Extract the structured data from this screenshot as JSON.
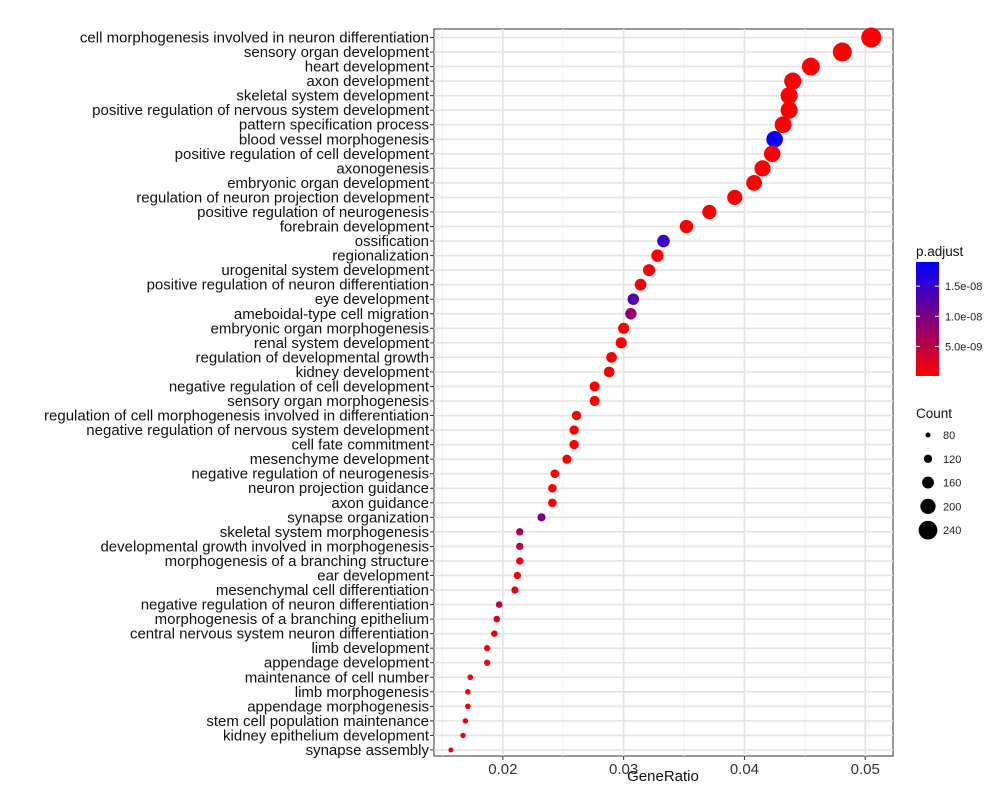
{
  "chart_data": {
    "type": "scatter",
    "title": "",
    "xlabel": "GeneRatio",
    "ylabel": "",
    "xlim": [
      0.0143,
      0.0523
    ],
    "x_ticks": [
      {
        "value": 0.02,
        "label": "0.02"
      },
      {
        "value": 0.03,
        "label": "0.03"
      },
      {
        "value": 0.04,
        "label": "0.04"
      },
      {
        "value": 0.05,
        "label": "0.05"
      }
    ],
    "grid": true,
    "legend_position": "right",
    "points": [
      {
        "term": "cell morphogenesis involved in neuron differentiation",
        "gene_ratio": 0.0505,
        "count": 255,
        "p_adjust": 1e-10
      },
      {
        "term": "sensory organ development",
        "gene_ratio": 0.0481,
        "count": 243,
        "p_adjust": 1e-10
      },
      {
        "term": "heart development",
        "gene_ratio": 0.0455,
        "count": 230,
        "p_adjust": 1e-10
      },
      {
        "term": "axon development",
        "gene_ratio": 0.044,
        "count": 222,
        "p_adjust": 1e-10
      },
      {
        "term": "skeletal system development",
        "gene_ratio": 0.0437,
        "count": 221,
        "p_adjust": 1e-10
      },
      {
        "term": "positive regulation of nervous system development",
        "gene_ratio": 0.0437,
        "count": 221,
        "p_adjust": 2e-10
      },
      {
        "term": "pattern specification process",
        "gene_ratio": 0.0432,
        "count": 218,
        "p_adjust": 5e-10
      },
      {
        "term": "blood vessel morphogenesis",
        "gene_ratio": 0.0425,
        "count": 215,
        "p_adjust": 1.85e-08
      },
      {
        "term": "positive regulation of cell development",
        "gene_ratio": 0.0423,
        "count": 214,
        "p_adjust": 4e-10
      },
      {
        "term": "axonogenesis",
        "gene_ratio": 0.0415,
        "count": 210,
        "p_adjust": 1e-10
      },
      {
        "term": "embryonic organ development",
        "gene_ratio": 0.0408,
        "count": 206,
        "p_adjust": 1e-10
      },
      {
        "term": "regulation of neuron projection development",
        "gene_ratio": 0.0392,
        "count": 198,
        "p_adjust": 2e-10
      },
      {
        "term": "positive regulation of neurogenesis",
        "gene_ratio": 0.0371,
        "count": 188,
        "p_adjust": 1e-10
      },
      {
        "term": "forebrain development",
        "gene_ratio": 0.0352,
        "count": 178,
        "p_adjust": 1e-10
      },
      {
        "term": "ossification",
        "gene_ratio": 0.0333,
        "count": 168,
        "p_adjust": 1.5e-08
      },
      {
        "term": "regionalization",
        "gene_ratio": 0.0328,
        "count": 166,
        "p_adjust": 5e-10
      },
      {
        "term": "urogenital system development",
        "gene_ratio": 0.0321,
        "count": 162,
        "p_adjust": 4e-10
      },
      {
        "term": "positive regulation of neuron differentiation",
        "gene_ratio": 0.0314,
        "count": 159,
        "p_adjust": 8e-10
      },
      {
        "term": "eye development",
        "gene_ratio": 0.0308,
        "count": 156,
        "p_adjust": 1.3e-08
      },
      {
        "term": "ameboidal-type cell migration",
        "gene_ratio": 0.0306,
        "count": 155,
        "p_adjust": 8e-09
      },
      {
        "term": "embryonic organ morphogenesis",
        "gene_ratio": 0.03,
        "count": 152,
        "p_adjust": 4e-10
      },
      {
        "term": "renal system development",
        "gene_ratio": 0.0298,
        "count": 151,
        "p_adjust": 4e-10
      },
      {
        "term": "regulation of developmental growth",
        "gene_ratio": 0.029,
        "count": 147,
        "p_adjust": 5e-10
      },
      {
        "term": "kidney development",
        "gene_ratio": 0.0288,
        "count": 146,
        "p_adjust": 4e-10
      },
      {
        "term": "negative regulation of cell development",
        "gene_ratio": 0.0276,
        "count": 140,
        "p_adjust": 3e-10
      },
      {
        "term": "sensory organ morphogenesis",
        "gene_ratio": 0.0276,
        "count": 140,
        "p_adjust": 3e-10
      },
      {
        "term": "regulation of cell morphogenesis involved in differentiation",
        "gene_ratio": 0.0261,
        "count": 132,
        "p_adjust": 2e-10
      },
      {
        "term": "negative regulation of nervous system development",
        "gene_ratio": 0.0259,
        "count": 131,
        "p_adjust": 3e-10
      },
      {
        "term": "cell fate commitment",
        "gene_ratio": 0.0259,
        "count": 131,
        "p_adjust": 2e-10
      },
      {
        "term": "mesenchyme development",
        "gene_ratio": 0.0253,
        "count": 128,
        "p_adjust": 2e-10
      },
      {
        "term": "negative regulation of neurogenesis",
        "gene_ratio": 0.0243,
        "count": 123,
        "p_adjust": 2e-10
      },
      {
        "term": "neuron projection guidance",
        "gene_ratio": 0.0241,
        "count": 122,
        "p_adjust": 2e-10
      },
      {
        "term": "axon guidance",
        "gene_ratio": 0.0241,
        "count": 122,
        "p_adjust": 2e-10
      },
      {
        "term": "synapse organization",
        "gene_ratio": 0.0232,
        "count": 117,
        "p_adjust": 1e-08
      },
      {
        "term": "skeletal system morphogenesis",
        "gene_ratio": 0.0214,
        "count": 108,
        "p_adjust": 7e-09
      },
      {
        "term": "developmental growth involved in morphogenesis",
        "gene_ratio": 0.0214,
        "count": 108,
        "p_adjust": 5e-09
      },
      {
        "term": "morphogenesis of a branching structure",
        "gene_ratio": 0.0214,
        "count": 108,
        "p_adjust": 1.5e-09
      },
      {
        "term": "ear development",
        "gene_ratio": 0.0212,
        "count": 107,
        "p_adjust": 1e-09
      },
      {
        "term": "mesenchymal cell differentiation",
        "gene_ratio": 0.021,
        "count": 106,
        "p_adjust": 1e-09
      },
      {
        "term": "negative regulation of neuron differentiation",
        "gene_ratio": 0.0197,
        "count": 100,
        "p_adjust": 4.5e-09
      },
      {
        "term": "morphogenesis of a branching epithelium",
        "gene_ratio": 0.0195,
        "count": 99,
        "p_adjust": 2.5e-09
      },
      {
        "term": "central nervous system neuron differentiation",
        "gene_ratio": 0.0193,
        "count": 98,
        "p_adjust": 1.5e-09
      },
      {
        "term": "limb development",
        "gene_ratio": 0.0187,
        "count": 95,
        "p_adjust": 1e-09
      },
      {
        "term": "appendage development",
        "gene_ratio": 0.0187,
        "count": 95,
        "p_adjust": 1e-09
      },
      {
        "term": "maintenance of cell number",
        "gene_ratio": 0.0173,
        "count": 88,
        "p_adjust": 1e-09
      },
      {
        "term": "limb morphogenesis",
        "gene_ratio": 0.0171,
        "count": 87,
        "p_adjust": 1e-09
      },
      {
        "term": "appendage morphogenesis",
        "gene_ratio": 0.0171,
        "count": 87,
        "p_adjust": 1e-09
      },
      {
        "term": "stem cell population maintenance",
        "gene_ratio": 0.0169,
        "count": 86,
        "p_adjust": 1e-09
      },
      {
        "term": "kidney epithelium development",
        "gene_ratio": 0.0167,
        "count": 85,
        "p_adjust": 1e-09
      },
      {
        "term": "synapse assembly",
        "gene_ratio": 0.0157,
        "count": 80,
        "p_adjust": 3e-09
      }
    ],
    "color_legend": {
      "title": "p.adjust",
      "range": [
        1e-10,
        1.9e-08
      ],
      "low_color": "#ff0000",
      "high_color": "#0000ff",
      "ticks": [
        {
          "value": 5e-09,
          "label": "5.0e-09"
        },
        {
          "value": 1e-08,
          "label": "1.0e-08"
        },
        {
          "value": 1.5e-08,
          "label": "1.5e-08"
        }
      ]
    },
    "size_legend": {
      "title": "Count",
      "size_range": [
        80,
        255
      ],
      "entries": [
        {
          "value": 80,
          "label": "80"
        },
        {
          "value": 120,
          "label": "120"
        },
        {
          "value": 160,
          "label": "160"
        },
        {
          "value": 200,
          "label": "200"
        },
        {
          "value": 240,
          "label": "240"
        }
      ]
    }
  }
}
